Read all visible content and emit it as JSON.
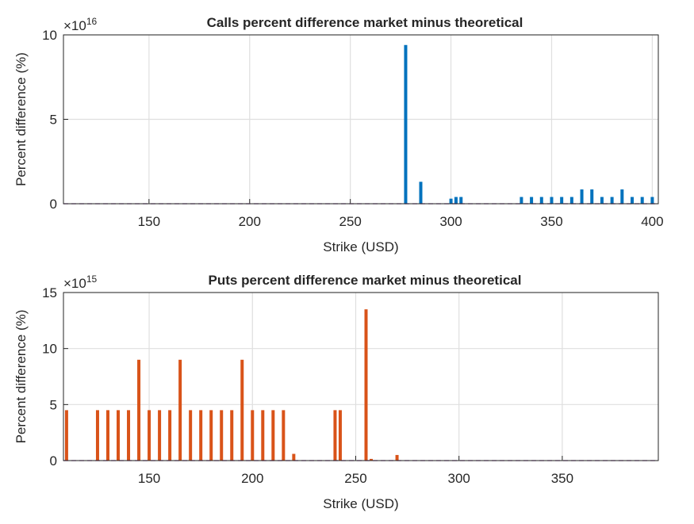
{
  "chart_data": [
    {
      "type": "bar",
      "title": "Calls percent difference market minus theoretical",
      "xlabel": "Strike (USD)",
      "ylabel": "Percent difference (%)",
      "y_multiplier": {
        "base": "×10",
        "exponent": "16"
      },
      "x": [
        277.5,
        285,
        300,
        302.5,
        305,
        335,
        340,
        345,
        350,
        355,
        360,
        365,
        370,
        375,
        380,
        385,
        390,
        395,
        400
      ],
      "values": [
        9.4,
        1.3,
        0.3,
        0.4,
        0.4,
        0.4,
        0.4,
        0.4,
        0.4,
        0.4,
        0.4,
        0.85,
        0.85,
        0.4,
        0.4,
        0.85,
        0.4,
        0.4,
        0.4
      ],
      "color": "#0072bd",
      "xlim": [
        107.5,
        403
      ],
      "xticks": [
        150,
        200,
        250,
        300,
        350,
        400
      ],
      "ylim": [
        0,
        10
      ],
      "yticks": [
        0,
        5,
        10
      ],
      "grid": true
    },
    {
      "type": "bar",
      "title": "Puts percent difference market minus theoretical",
      "xlabel": "Strike (USD)",
      "ylabel": "Percent difference (%)",
      "y_multiplier": {
        "base": "×10",
        "exponent": "15"
      },
      "x": [
        110,
        125,
        130,
        135,
        140,
        145,
        150,
        155,
        160,
        165,
        170,
        175,
        180,
        185,
        190,
        195,
        200,
        205,
        210,
        215,
        220,
        240,
        242.5,
        255,
        257.5,
        270
      ],
      "values": [
        4.5,
        4.5,
        4.5,
        4.5,
        4.5,
        9,
        4.5,
        4.5,
        4.5,
        9,
        4.5,
        4.5,
        4.5,
        4.5,
        4.5,
        9,
        4.5,
        4.5,
        4.5,
        4.5,
        0.6,
        4.5,
        4.5,
        13.5,
        0.15,
        0.5
      ],
      "color": "#d95319",
      "xlim": [
        108.5,
        396.5
      ],
      "xticks": [
        150,
        200,
        250,
        300,
        350
      ],
      "ylim": [
        0,
        15
      ],
      "yticks": [
        0,
        5,
        10,
        15
      ],
      "grid": true
    }
  ]
}
